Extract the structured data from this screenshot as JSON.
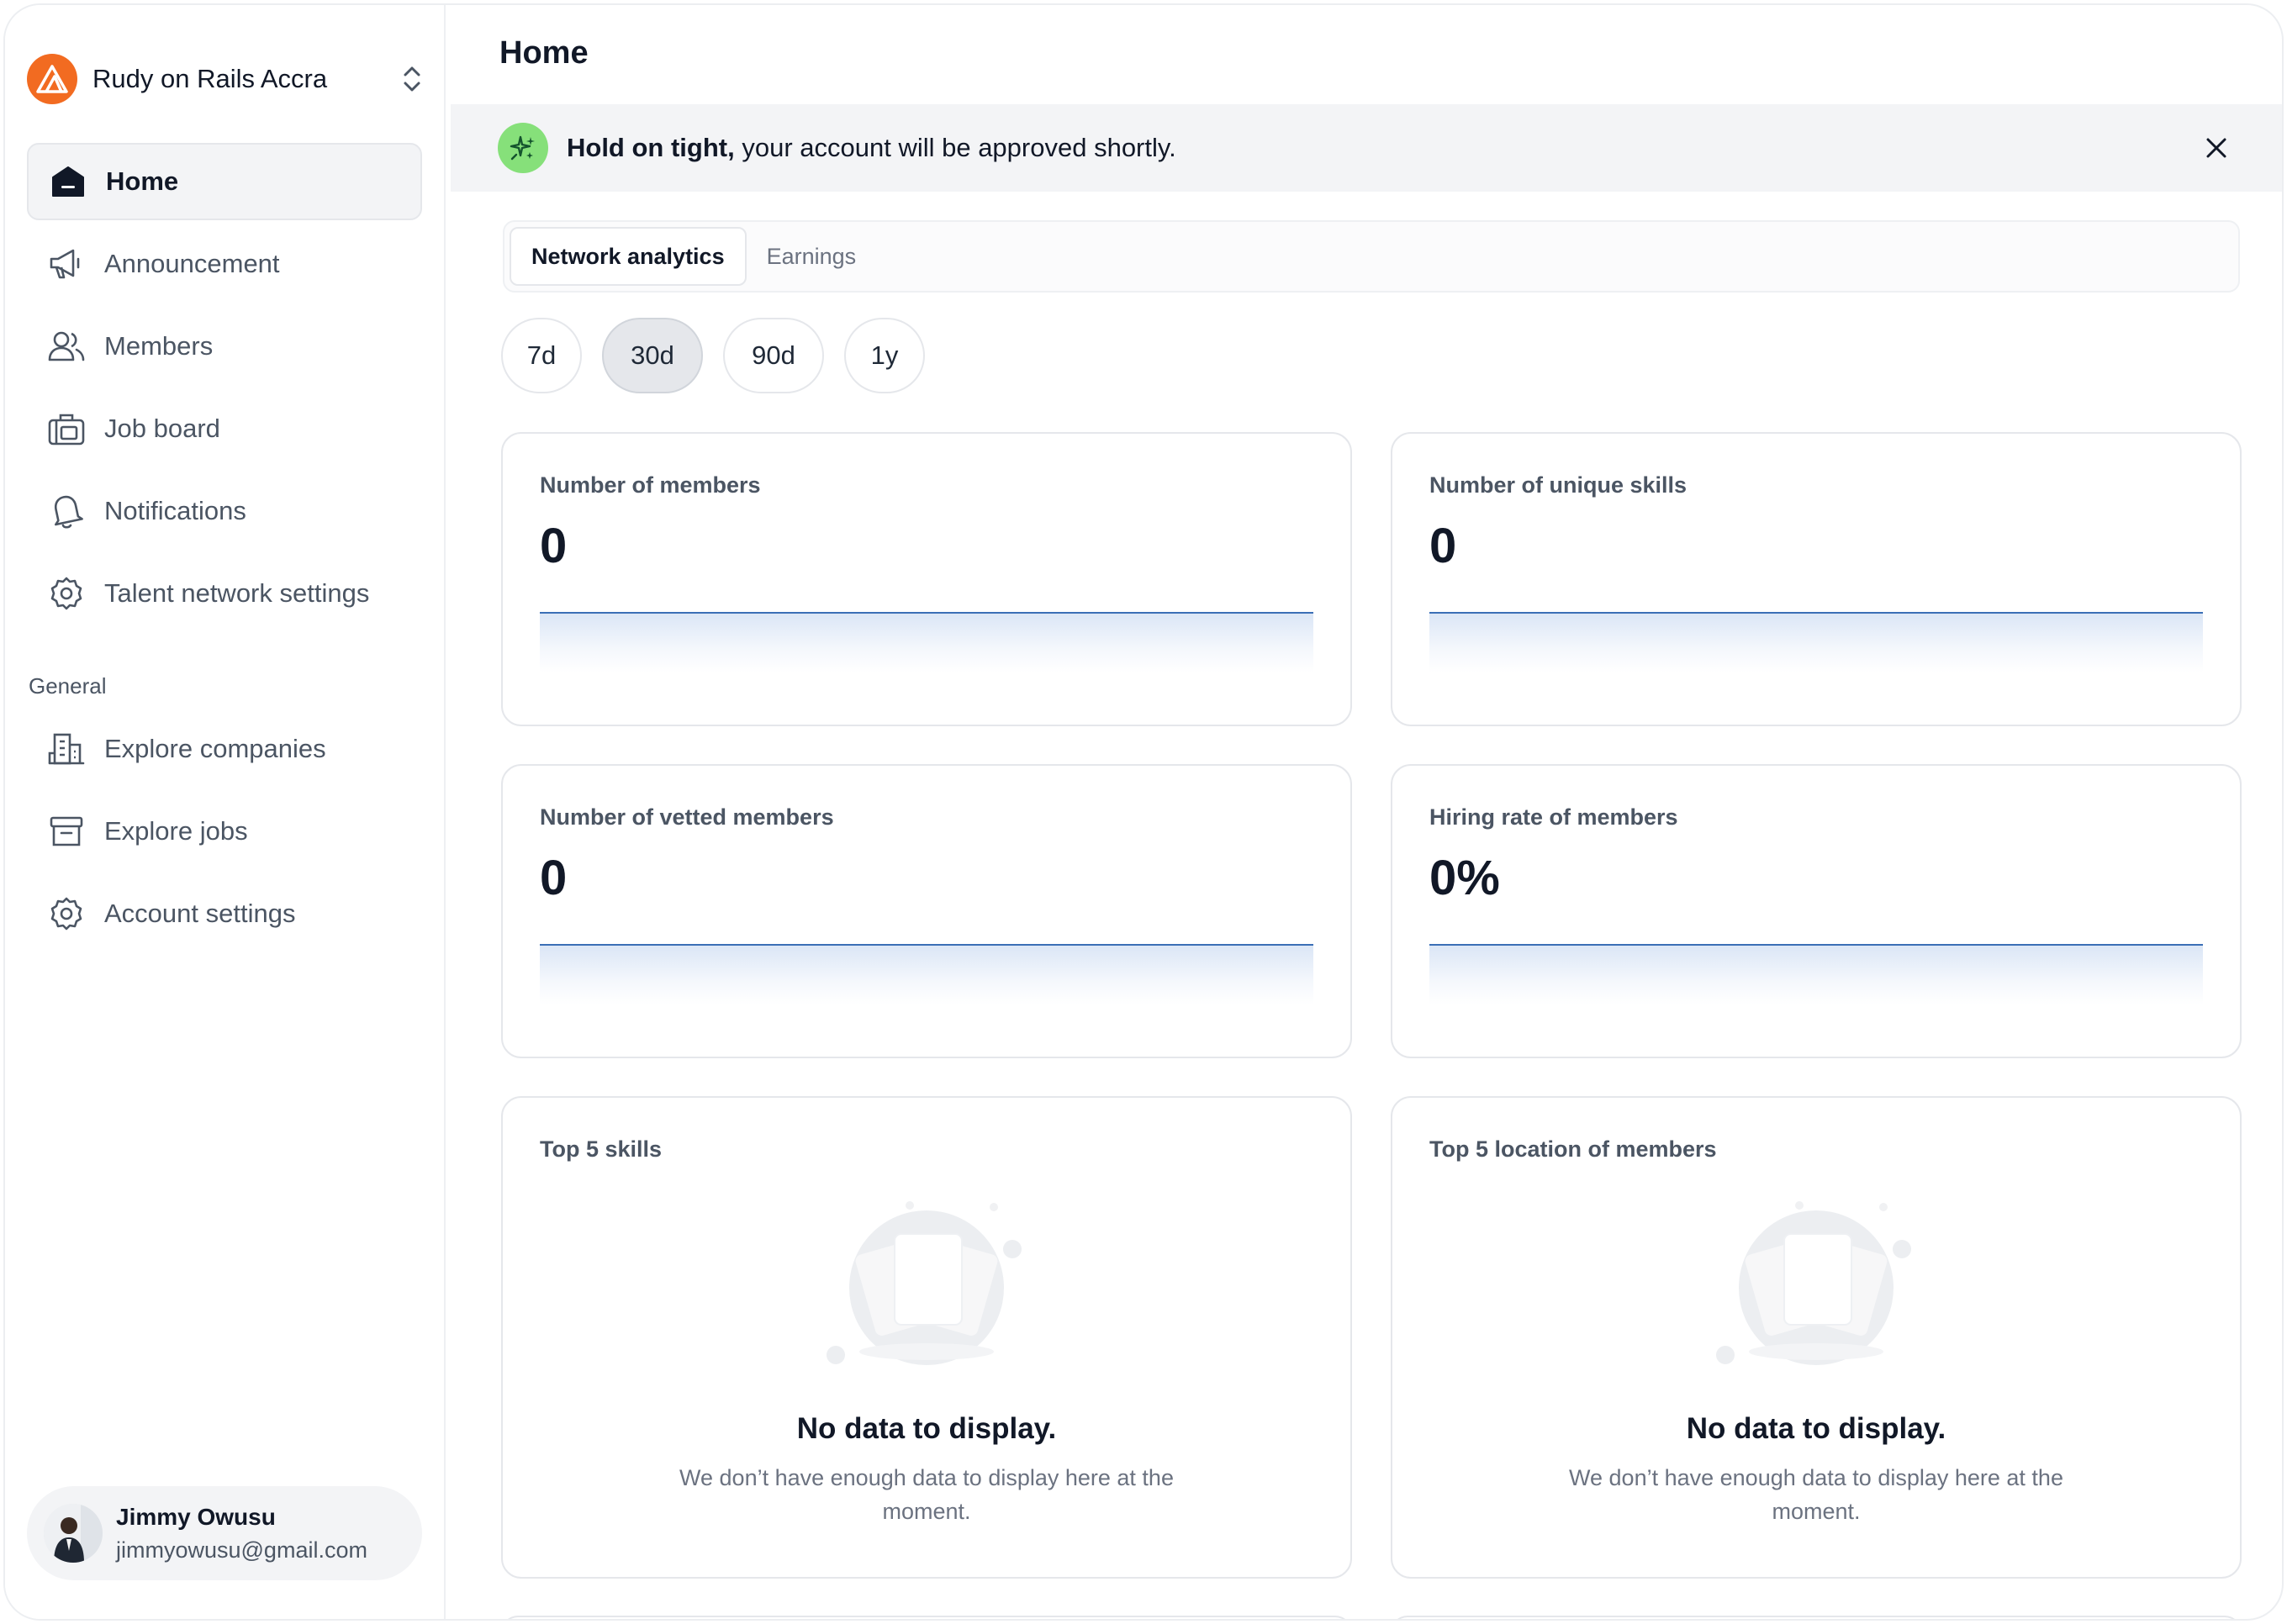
{
  "org": {
    "name": "Rudy on Rails Accra"
  },
  "nav": {
    "items": [
      {
        "label": "Home",
        "icon": "home-icon"
      },
      {
        "label": "Announcement",
        "icon": "megaphone-icon"
      },
      {
        "label": "Members",
        "icon": "users-icon"
      },
      {
        "label": "Job board",
        "icon": "briefcase-icon"
      },
      {
        "label": "Notifications",
        "icon": "bell-icon"
      },
      {
        "label": "Talent network settings",
        "icon": "gear-icon"
      }
    ],
    "general_label": "General",
    "general_items": [
      {
        "label": "Explore companies",
        "icon": "building-icon"
      },
      {
        "label": "Explore jobs",
        "icon": "archive-icon"
      },
      {
        "label": "Account settings",
        "icon": "gear-icon"
      }
    ]
  },
  "user": {
    "name": "Jimmy Owusu",
    "email": "jimmyowusu@gmail.com"
  },
  "page": {
    "title": "Home"
  },
  "banner": {
    "bold": "Hold on tight,",
    "text": " your account will be approved shortly."
  },
  "tabs": [
    {
      "label": "Network analytics",
      "active": true
    },
    {
      "label": "Earnings",
      "active": false
    }
  ],
  "ranges": [
    {
      "label": "7d"
    },
    {
      "label": "30d",
      "active": true
    },
    {
      "label": "90d"
    },
    {
      "label": "1y"
    }
  ],
  "metrics": [
    {
      "label": "Number of members",
      "value": "0"
    },
    {
      "label": "Number of unique skills",
      "value": "0"
    },
    {
      "label": "Number of vetted members",
      "value": "0"
    },
    {
      "label": "Hiring rate of members",
      "value": "0%"
    }
  ],
  "lists": [
    {
      "label": "Top 5 skills",
      "empty_title": "No data to display.",
      "empty_desc": "We don’t have enough data to display here at the moment."
    },
    {
      "label": "Top 5 location of members",
      "empty_title": "No data to display.",
      "empty_desc": "We don’t have enough data to display here at the moment."
    }
  ],
  "colors": {
    "brand": "#f26b21",
    "banner_icon": "#86e07a",
    "spark_line": "#3b6fb6"
  }
}
